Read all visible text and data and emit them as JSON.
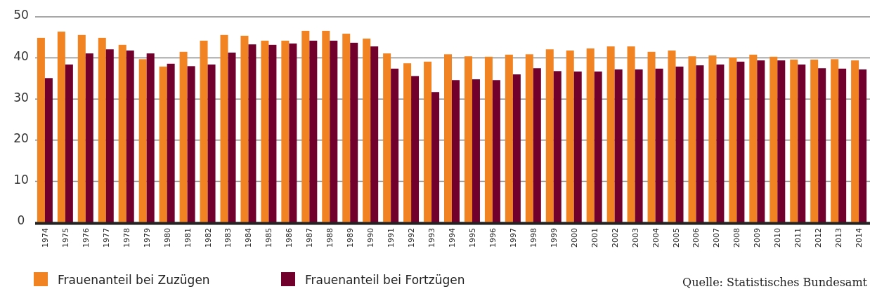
{
  "chart_data": {
    "type": "bar",
    "categories": [
      "1974",
      "1975",
      "1976",
      "1977",
      "1978",
      "1979",
      "1980",
      "1981",
      "1982",
      "1983",
      "1984",
      "1985",
      "1986",
      "1987",
      "1988",
      "1989",
      "1990",
      "1991",
      "1992",
      "1993",
      "1994",
      "1995",
      "1996",
      "1997",
      "1998",
      "1999",
      "2000",
      "2001",
      "2002",
      "2003",
      "2004",
      "2005",
      "2006",
      "2007",
      "2008",
      "2009",
      "2010",
      "2011",
      "2012",
      "2013",
      "2014"
    ],
    "series": [
      {
        "name": "Frauenanteil bei Zuzügen",
        "color": "#f28322",
        "values": [
          44.9,
          46.4,
          45.6,
          44.9,
          43.2,
          39.7,
          37.9,
          41.5,
          44.2,
          45.6,
          45.4,
          44.2,
          44.2,
          46.6,
          46.6,
          45.9,
          44.7,
          41.1,
          38.7,
          39.1,
          40.9,
          40.4,
          40.3,
          40.8,
          40.9,
          42.1,
          41.8,
          42.3,
          42.8,
          42.8,
          41.5,
          41.8,
          40.4,
          40.6,
          40.1,
          40.8,
          40.3,
          39.6,
          39.6,
          39.7,
          39.4
        ]
      },
      {
        "name": "Frauenanteil bei Fortzügen",
        "color": "#72002c",
        "values": [
          35.1,
          38.4,
          41.1,
          42.1,
          41.8,
          41.1,
          38.6,
          38.0,
          38.4,
          41.3,
          43.3,
          43.2,
          43.5,
          44.2,
          44.2,
          43.7,
          42.8,
          37.4,
          35.6,
          31.7,
          34.6,
          34.8,
          34.6,
          36.0,
          37.5,
          36.8,
          36.7,
          36.7,
          37.2,
          37.2,
          37.4,
          37.9,
          38.2,
          38.4,
          39.1,
          39.4,
          39.4,
          38.4,
          37.5,
          37.4,
          37.2
        ]
      }
    ],
    "ylim": [
      0,
      50
    ],
    "yticks": [
      0,
      10,
      20,
      30,
      40,
      50
    ],
    "grid": "y",
    "legend": "bottom left",
    "annotations": [
      "Quelle: Statistisches Bundesamt"
    ]
  }
}
